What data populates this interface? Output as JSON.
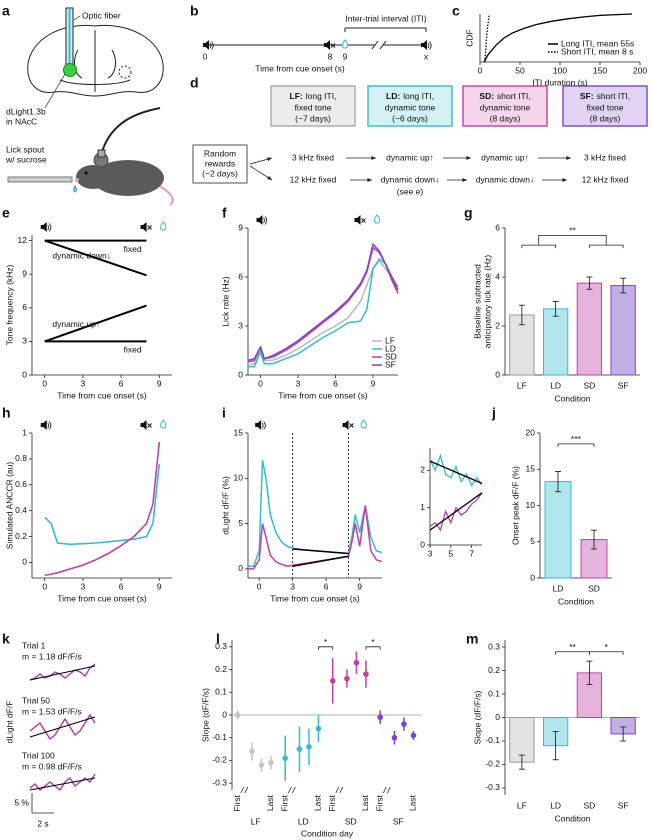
{
  "panel_labels": [
    "a",
    "b",
    "c",
    "d",
    "e",
    "f",
    "g",
    "h",
    "i",
    "j",
    "k",
    "l",
    "m"
  ],
  "diagram_a": {
    "fiber_label": "Optic fiber",
    "virus_label": [
      "dLight1.3b",
      "in NAcC"
    ],
    "spout_label": [
      "Lick spout",
      "w/ sucrose"
    ]
  },
  "timeline_b": {
    "iti_label": "Inter-trial interval (ITI)",
    "ticks": [
      "0",
      "8",
      "9",
      "x"
    ],
    "xlabel": "Time from cue onset (s)"
  },
  "flow_d": {
    "start": [
      "Random",
      "rewards",
      "(~2 days)"
    ],
    "stages": [
      {
        "code": "LF:",
        "lines": [
          "long ITI,",
          "fixed tone",
          "(~7 days)"
        ],
        "color": "#a8a8a8",
        "fill": "#ececec",
        "row1": "3 kHz fixed",
        "row2": "12 kHz fixed"
      },
      {
        "code": "LD:",
        "lines": [
          "long ITI,",
          "dynamic tone",
          "(~6 days)"
        ],
        "color": "#35bccc",
        "fill": "#d4f1f4",
        "row1": "dynamic up↑",
        "row2": "dynamic down↓",
        "note": "(see e)"
      },
      {
        "code": "SD:",
        "lines": [
          "short ITI,",
          "dynamic tone",
          "(8 days)"
        ],
        "color": "#c13fa6",
        "fill": "#f3d6ec",
        "row1": "dynamic up↑",
        "row2": "dynamic down↓"
      },
      {
        "code": "SF:",
        "lines": [
          "short ITI,",
          "fixed tone",
          "(8 days)"
        ],
        "color": "#7d45c4",
        "fill": "#e1d4f3",
        "row1": "3 kHz fixed",
        "row2": "12 kHz fixed"
      }
    ]
  },
  "traces_k": {
    "ylabel": "dLight dF/F",
    "scale_y": "5 %",
    "scale_x": "2 s",
    "color": "#b03aa0",
    "traces": [
      {
        "label": "Trial 1",
        "slope": "m = 1.18 dF/F/s",
        "values": [
          -1,
          -0.5,
          0.5,
          -0.5,
          0,
          1,
          0.5,
          -0.5,
          0.5,
          1.5,
          1,
          0,
          2,
          3
        ],
        "fit": [
          -1,
          2.5
        ]
      },
      {
        "label": "Trial 50",
        "slope": "m = 1.53 dF/F/s",
        "values": [
          0,
          1,
          2,
          0,
          -2,
          -1,
          1,
          3,
          1,
          -1,
          0,
          2,
          4,
          2
        ],
        "fit": [
          -1.5,
          3.5
        ]
      },
      {
        "label": "Trial 100",
        "slope": "m = 0.98 dF/F/s",
        "values": [
          -0.5,
          0.5,
          -1,
          0,
          1,
          0,
          -1,
          1,
          2,
          0,
          1,
          2,
          1,
          3
        ],
        "fit": [
          -1,
          2
        ]
      }
    ]
  },
  "chart_data": [
    {
      "type": "line",
      "ylabel": "CDF",
      "xlabel": "ITI duration (s)",
      "xlim": [
        0,
        200
      ],
      "ylim": [
        0,
        1
      ],
      "xticks": [
        0,
        50,
        100,
        150,
        200
      ],
      "legend": "lower right",
      "series": [
        {
          "name": "Long ITI, mean 55s",
          "color": "#000000",
          "dash": "solid",
          "x": [
            5,
            10,
            20,
            30,
            40,
            55,
            70,
            90,
            110,
            130,
            150,
            175,
            190
          ],
          "values": [
            0,
            0.15,
            0.35,
            0.5,
            0.6,
            0.7,
            0.78,
            0.85,
            0.9,
            0.94,
            0.97,
            0.99,
            1
          ]
        },
        {
          "name": "Short ITI, mean 8 s",
          "color": "#000000",
          "dash": "dotted",
          "x": [
            6,
            7,
            8,
            9,
            10,
            11,
            12
          ],
          "values": [
            0,
            0.2,
            0.45,
            0.65,
            0.8,
            0.92,
            1
          ]
        }
      ]
    },
    {
      "type": "line",
      "ylabel": "Tone frequency (kHz)",
      "xlabel": "Time from cue onset (s)",
      "xlim": [
        -1,
        10
      ],
      "ylim": [
        0,
        12.5
      ],
      "xticks": [
        0,
        3,
        6,
        9
      ],
      "yticks": [
        0,
        3,
        6,
        9,
        12
      ],
      "inline_labels": true,
      "line_width": 2,
      "series": [
        {
          "name": "fixed",
          "color": "#000000",
          "x": [
            0,
            8
          ],
          "values": [
            12,
            12
          ]
        },
        {
          "name": "dynamic down↓",
          "color": "#000000",
          "x": [
            0,
            8
          ],
          "values": [
            12,
            8.9
          ]
        },
        {
          "name": "dynamic up↑",
          "color": "#000000",
          "x": [
            0,
            8
          ],
          "values": [
            3,
            6.2
          ]
        },
        {
          "name": "fixed",
          "color": "#000000",
          "x": [
            0,
            8
          ],
          "values": [
            3,
            3
          ]
        }
      ]
    },
    {
      "type": "line",
      "ylabel": "Lick rate (Hz)",
      "xlabel": "Time from cue onset (s)",
      "xlim": [
        -1,
        11
      ],
      "ylim": [
        0,
        9
      ],
      "xticks": [
        0,
        3,
        6,
        9
      ],
      "yticks": [
        0,
        3,
        6,
        9
      ],
      "legend": "lower right",
      "line_width": 1.5,
      "x": [
        -1,
        -0.5,
        0,
        0.3,
        1,
        2,
        3,
        4,
        5,
        6,
        7,
        8,
        8.5,
        9,
        9.5,
        10,
        10.5,
        11
      ],
      "series": [
        {
          "name": "LF",
          "color": "#b9b9b9",
          "values": [
            0.6,
            0.7,
            1.5,
            0.9,
            0.9,
            1.2,
            1.6,
            2.1,
            2.6,
            3.0,
            3.5,
            4.5,
            5.5,
            6.5,
            7.0,
            6.5,
            6.0,
            5.0
          ]
        },
        {
          "name": "LD",
          "color": "#35bccc",
          "values": [
            0.5,
            0.5,
            1.4,
            0.7,
            0.7,
            1.0,
            1.3,
            1.8,
            2.3,
            2.7,
            3.2,
            3.3,
            4.0,
            6.5,
            7.1,
            6.8,
            6.0,
            5.4
          ]
        },
        {
          "name": "SD",
          "color": "#c13fa6",
          "values": [
            0.8,
            0.9,
            1.7,
            1.0,
            1.1,
            1.5,
            2.0,
            2.6,
            3.2,
            3.8,
            4.5,
            5.5,
            6.3,
            7.8,
            7.5,
            6.8,
            5.8,
            5.0
          ]
        },
        {
          "name": "SF",
          "color": "#7d45c4",
          "values": [
            0.9,
            1.0,
            1.7,
            1.0,
            1.2,
            1.6,
            2.1,
            2.7,
            3.3,
            3.9,
            4.6,
            5.6,
            6.4,
            8.0,
            7.6,
            6.8,
            6.0,
            5.2
          ]
        }
      ]
    },
    {
      "type": "bar",
      "ylabel": [
        "Baseline subtracted",
        "anticipatory lick rate (Hz)"
      ],
      "xlabel": "Condition",
      "ylim": [
        0,
        6
      ],
      "yticks": [
        0,
        2,
        4,
        6
      ],
      "categories": [
        "LF",
        "LD",
        "SD",
        "SF"
      ],
      "values": [
        2.45,
        2.7,
        3.75,
        3.65
      ],
      "errors": [
        0.4,
        0.3,
        0.25,
        0.3
      ],
      "colors": [
        "#e3e3e3",
        "#b2e6ec",
        "#e6b3dc",
        "#c3aee6"
      ],
      "edge_colors": [
        "#9a9a9a",
        "#35bccc",
        "#c13fa6",
        "#7d45c4"
      ],
      "annotations": [
        "**"
      ]
    },
    {
      "type": "line",
      "ylabel": "Simulated ANCCR (au)",
      "xlabel": "Time from cue onset (s)",
      "xlim": [
        -1,
        10
      ],
      "ylim": [
        -0.12,
        1
      ],
      "xticks": [
        0,
        3,
        6,
        9
      ],
      "yticks": [
        0,
        0.2,
        0.4,
        0.6,
        0.8,
        1
      ],
      "line_width": 1.6,
      "x": [
        0,
        0.5,
        1,
        2,
        3,
        4,
        5,
        6,
        7,
        8,
        8.5,
        9
      ],
      "series": [
        {
          "color": "#35bccc",
          "values": [
            0.35,
            0.3,
            0.15,
            0.14,
            0.145,
            0.15,
            0.16,
            0.17,
            0.18,
            0.2,
            0.3,
            0.76
          ]
        },
        {
          "color": "#c13fa6",
          "values": [
            -0.1,
            -0.09,
            -0.08,
            -0.05,
            -0.02,
            0.02,
            0.07,
            0.13,
            0.2,
            0.3,
            0.45,
            0.93
          ]
        }
      ]
    },
    {
      "type": "line",
      "ylabel": "dLight dF/F (%)",
      "xlabel": "Time from cue onset (s)",
      "xlim": [
        -1,
        11
      ],
      "ylim": [
        -1,
        15
      ],
      "xticks": [
        0,
        3,
        6,
        9
      ],
      "yticks": [
        0,
        5,
        10,
        15
      ],
      "vlines": [
        3,
        8
      ],
      "line_width": 1.5,
      "x": [
        -1,
        -0.5,
        0,
        0.3,
        0.6,
        1,
        1.5,
        2,
        2.5,
        3,
        4,
        5,
        6,
        7,
        8,
        8.3,
        8.6,
        9,
        9.5,
        10,
        10.5,
        11
      ],
      "series": [
        {
          "color": "#35bccc",
          "values": [
            0.3,
            0.3,
            2,
            12,
            10,
            6,
            4,
            3,
            2.5,
            2.3,
            2.1,
            2.0,
            1.9,
            1.8,
            1.7,
            3.5,
            6,
            4,
            7,
            3.5,
            2,
            1.8
          ]
        },
        {
          "color": "#c13fa6",
          "values": [
            0,
            0,
            1,
            5,
            3.5,
            1.5,
            0.8,
            0.5,
            0.3,
            0.4,
            0.6,
            0.8,
            1.0,
            1.2,
            1.4,
            3,
            5,
            2.5,
            7,
            2,
            1,
            0.8
          ]
        },
        {
          "color": "#000000",
          "x": [
            3,
            8
          ],
          "values": [
            2.2,
            1.7
          ]
        },
        {
          "color": "#000000",
          "x": [
            3,
            8
          ],
          "values": [
            0.3,
            1.4
          ]
        }
      ]
    },
    {
      "type": "line",
      "xlim": [
        3,
        8
      ],
      "ylim": [
        0,
        2.6
      ],
      "xticks": [
        3,
        5,
        7
      ],
      "yticks": [
        0,
        1,
        2
      ],
      "line_width": 1.3,
      "x": [
        3,
        3.5,
        4,
        4.5,
        5,
        5.5,
        6,
        6.5,
        7,
        7.5,
        8
      ],
      "series": [
        {
          "color": "#35bccc",
          "values": [
            2.3,
            2.0,
            2.4,
            1.9,
            1.8,
            2.1,
            1.7,
            1.9,
            1.6,
            1.8,
            1.6
          ]
        },
        {
          "color": "#c13fa6",
          "values": [
            0.5,
            0.6,
            0.4,
            0.9,
            0.6,
            1.0,
            0.8,
            0.9,
            1.1,
            1.2,
            1.4
          ]
        },
        {
          "color": "#000000",
          "x": [
            3,
            8
          ],
          "values": [
            2.25,
            1.65
          ]
        },
        {
          "color": "#000000",
          "x": [
            3,
            8
          ],
          "values": [
            0.4,
            1.4
          ]
        }
      ]
    },
    {
      "type": "bar",
      "ylabel": "Onset peak dF/F (%)",
      "xlabel": "Condition",
      "ylim": [
        0,
        20
      ],
      "yticks": [
        0,
        5,
        10,
        15,
        20
      ],
      "categories": [
        "LD",
        "SD"
      ],
      "values": [
        13.3,
        5.3
      ],
      "errors": [
        1.4,
        1.3
      ],
      "colors": [
        "#b2e6ec",
        "#e6b3dc"
      ],
      "edge_colors": [
        "#35bccc",
        "#c13fa6"
      ],
      "annotations": [
        "***"
      ]
    },
    {
      "type": "errorbar",
      "ylabel": "Slope (dF/F/s)",
      "xlabel": "Condition day",
      "ylim": [
        -0.33,
        0.33
      ],
      "yticks": [
        -0.3,
        -0.2,
        -0.1,
        0,
        0.1,
        0.2,
        0.3
      ],
      "annotations": [
        "*",
        "*"
      ],
      "series": [
        {
          "name": "LF",
          "color": "#c4c4c4",
          "categories": [
            "First",
            null,
            null,
            "Last"
          ],
          "values": [
            0,
            -0.16,
            -0.22,
            -0.21
          ],
          "errors": [
            0.02,
            0.04,
            0.03,
            0.03
          ]
        },
        {
          "name": "LD",
          "color": "#35bccc",
          "categories": [
            "First",
            null,
            null,
            "Last"
          ],
          "values": [
            -0.19,
            -0.15,
            -0.14,
            -0.06
          ],
          "errors": [
            0.1,
            0.1,
            0.08,
            0.06
          ]
        },
        {
          "name": "SD",
          "color": "#c13fa6",
          "categories": [
            "First",
            null,
            null,
            "Last"
          ],
          "values": [
            0.15,
            0.16,
            0.23,
            0.18
          ],
          "errors": [
            0.1,
            0.04,
            0.05,
            0.06
          ]
        },
        {
          "name": "SF",
          "color": "#7d45c4",
          "categories": [
            "First",
            null,
            null,
            "Last"
          ],
          "values": [
            -0.01,
            -0.1,
            -0.04,
            -0.09
          ],
          "errors": [
            0.03,
            0.03,
            0.03,
            0.02
          ]
        }
      ]
    },
    {
      "type": "bar",
      "ylabel": "Slope (dF/F/s)",
      "xlabel": "Condition",
      "ylim": [
        -0.33,
        0.33
      ],
      "yticks": [
        -0.3,
        -0.2,
        -0.1,
        0,
        0.1,
        0.2,
        0.3
      ],
      "categories": [
        "LF",
        "LD",
        "SD",
        "SF"
      ],
      "values": [
        -0.19,
        -0.12,
        0.19,
        -0.07
      ],
      "errors": [
        0.03,
        0.06,
        0.05,
        0.03
      ],
      "colors": [
        "#e3e3e3",
        "#b2e6ec",
        "#e6b3dc",
        "#c3aee6"
      ],
      "edge_colors": [
        "#9a9a9a",
        "#35bccc",
        "#c13fa6",
        "#7d45c4"
      ],
      "annotations": [
        "**",
        "*"
      ]
    }
  ]
}
